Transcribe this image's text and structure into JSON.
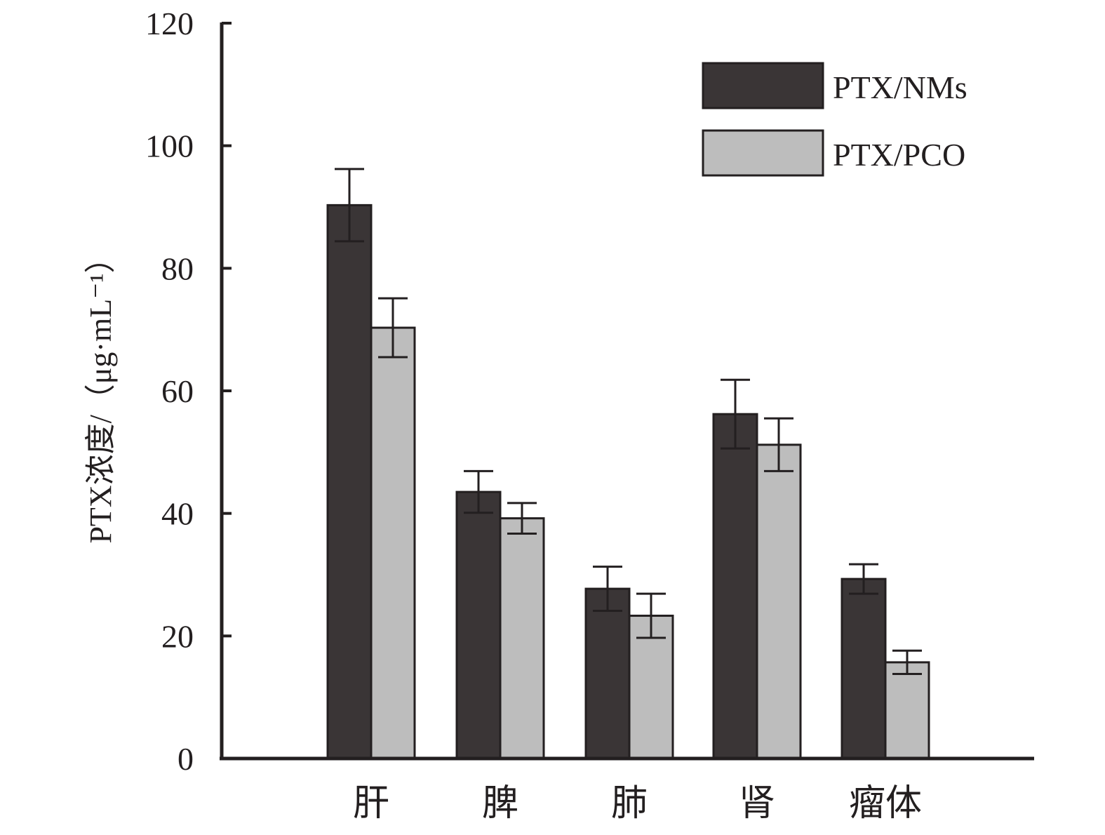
{
  "chart_data": {
    "type": "bar",
    "title": "",
    "xlabel": "",
    "ylabel": "PTX浓度/（μg·mL⁻¹）",
    "ylim": [
      0,
      120
    ],
    "yticks": [
      0,
      20,
      40,
      60,
      80,
      100,
      120
    ],
    "categories": [
      "肝",
      "脾",
      "肺",
      "肾",
      "瘤体"
    ],
    "series": [
      {
        "name": "PTX/NMs",
        "color": "#3a3536",
        "values": [
          90.3,
          43.5,
          27.7,
          56.2,
          29.3
        ],
        "error": [
          5.9,
          3.4,
          3.6,
          5.6,
          2.4
        ]
      },
      {
        "name": "PTX/PCO",
        "color": "#bdbdbd",
        "values": [
          70.3,
          39.2,
          23.3,
          51.2,
          15.7
        ],
        "error": [
          4.8,
          2.5,
          3.6,
          4.3,
          1.9
        ]
      }
    ],
    "legend": "top-right",
    "grid": false,
    "error_bars": true
  }
}
